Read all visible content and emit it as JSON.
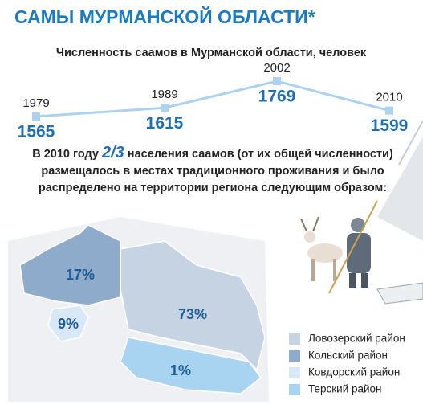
{
  "header": {
    "title": "САМЫ МУРМАНСКОЙ ОБЛАСТИ*"
  },
  "chart_data": [
    {
      "type": "line",
      "title": "Численность саамов в Мурманской области, человек",
      "categories": [
        "1979",
        "1989",
        "2002",
        "2010"
      ],
      "values": [
        1565,
        1615,
        1769,
        1599
      ],
      "color": "#aed2ee"
    },
    {
      "type": "map",
      "categories": [
        "Ловозерский район",
        "Кольский район",
        "Ковдорский район",
        "Терский район"
      ],
      "values": [
        73,
        17,
        9,
        1
      ],
      "value_labels": [
        "73%",
        "17%",
        "9%",
        "1%"
      ],
      "colors": [
        "#c6d3e2",
        "#8eabcc",
        "#d9e8f6",
        "#a8d4f2"
      ]
    }
  ],
  "text": {
    "before": "В 2010 году ",
    "highlight": "2/3",
    "after": " населения саамов (от их общей численности) размещалось в местах традиционного проживания и было распределено на территории региона следующим образом:"
  }
}
